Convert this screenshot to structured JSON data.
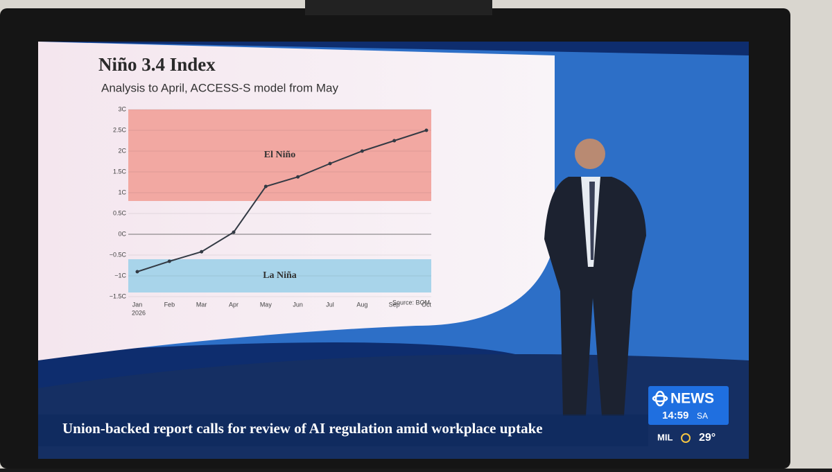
{
  "chart_data": {
    "type": "line",
    "title": "Niño 3.4 Index",
    "subtitle": "Analysis to April, ACCESS-S model from May",
    "categories": [
      "Jan",
      "Feb",
      "Mar",
      "Apr",
      "May",
      "Jun",
      "Jul",
      "Aug",
      "Sep",
      "Oct"
    ],
    "x_sublabel": "2026",
    "values": [
      -0.9,
      -0.65,
      -0.42,
      0.05,
      1.15,
      1.38,
      1.7,
      2.0,
      2.25,
      2.5
    ],
    "color": "#333a44",
    "ylim": [
      -1.5,
      3
    ],
    "yticks": [
      {
        "value": 3,
        "label": "3C"
      },
      {
        "value": 2.5,
        "label": "2.5C"
      },
      {
        "value": 2,
        "label": "2C"
      },
      {
        "value": 1.5,
        "label": "1.5C"
      },
      {
        "value": 1,
        "label": "1C"
      },
      {
        "value": 0.5,
        "label": "0.5C"
      },
      {
        "value": 0,
        "label": "0C"
      },
      {
        "value": -0.5,
        "label": "−0.5C"
      },
      {
        "value": -1,
        "label": "−1C"
      },
      {
        "value": -1.5,
        "label": "−1.5C"
      }
    ],
    "regions": [
      {
        "label": "El Niño",
        "from": 0.8,
        "to": 3,
        "color": "#f2a8a2"
      },
      {
        "label": "La Niña",
        "from": -1.4,
        "to": -0.6,
        "color": "#a8d4ea"
      }
    ],
    "source": "Source: BOM"
  },
  "ticker": "Union-backed report calls for review of AI regulation amid workplace uptake",
  "logo": "NEWS",
  "time": "14:59",
  "timezone": "SA",
  "weather": {
    "location": "MIL",
    "temperature": "29°"
  }
}
